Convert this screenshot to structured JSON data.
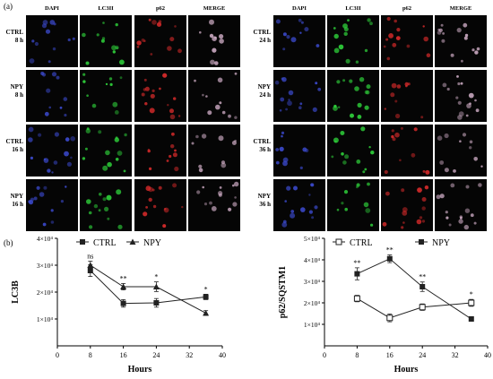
{
  "figure": {
    "panel_a_label": "(a)",
    "panel_b_label": "(b)",
    "channels": [
      "DAPI",
      "LC3II",
      "p62",
      "MERGE"
    ],
    "left_block": {
      "rows": [
        [
          "CTRL",
          "8 h"
        ],
        [
          "NPY",
          "8 h"
        ],
        [
          "CTRL",
          "16 h"
        ],
        [
          "NPY",
          "16 h"
        ]
      ]
    },
    "right_block": {
      "rows": [
        [
          "CTRL",
          "24 h"
        ],
        [
          "NPY",
          "24 h"
        ],
        [
          "CTRL",
          "36 h"
        ],
        [
          "NPY",
          "36 h"
        ]
      ]
    },
    "channel_colors": {
      "DAPI": "#3a48c8",
      "LC3II": "#2ecf3a",
      "p62": "#d42a2a",
      "MERGE": "#c9a8c0"
    }
  },
  "chart_data": [
    {
      "type": "line",
      "xlabel": "Hours",
      "ylabel": "LC3B",
      "xlim": [
        0,
        40
      ],
      "xticks": [
        0,
        8,
        16,
        24,
        32,
        40
      ],
      "ylim": [
        0,
        40000
      ],
      "yticks": [
        "1×10⁴",
        "2×10⁴",
        "3×10⁴",
        "4×10⁴"
      ],
      "legend_position": "top",
      "series": [
        {
          "name": "CTRL",
          "marker": "filled-square",
          "x": [
            8,
            16,
            24,
            36
          ],
          "y": [
            28000,
            15800,
            16000,
            18200
          ],
          "err": [
            2200,
            1400,
            1600,
            1000
          ]
        },
        {
          "name": "NPY",
          "marker": "filled-triangle",
          "x": [
            8,
            16,
            24,
            36
          ],
          "y": [
            30000,
            22000,
            22000,
            12200
          ],
          "err": [
            1500,
            1200,
            1800,
            900
          ]
        }
      ],
      "annotations": [
        {
          "x": 8,
          "text": "ns"
        },
        {
          "x": 16,
          "text": "**"
        },
        {
          "x": 24,
          "text": "*"
        },
        {
          "x": 36,
          "text": "*"
        }
      ]
    },
    {
      "type": "line",
      "xlabel": "Hours",
      "ylabel": "p62/SQSTM1",
      "xlim": [
        0,
        40
      ],
      "xticks": [
        0,
        8,
        16,
        24,
        32,
        40
      ],
      "ylim": [
        0,
        50000
      ],
      "yticks": [
        "1×10⁴",
        "2×10⁴",
        "3×10⁴",
        "4×10⁴",
        "5×10⁴"
      ],
      "legend_position": "top",
      "series": [
        {
          "name": "CTRL",
          "marker": "open-square",
          "x": [
            8,
            16,
            24,
            36
          ],
          "y": [
            22000,
            13000,
            18000,
            20000
          ],
          "err": [
            1500,
            1800,
            1500,
            1600
          ]
        },
        {
          "name": "NPY",
          "marker": "filled-square",
          "x": [
            8,
            16,
            24,
            36
          ],
          "y": [
            33500,
            40500,
            27500,
            12500
          ],
          "err": [
            2800,
            1800,
            2200,
            800
          ]
        }
      ],
      "annotations": [
        {
          "x": 8,
          "text": "**"
        },
        {
          "x": 16,
          "text": "**"
        },
        {
          "x": 24,
          "text": "**"
        },
        {
          "x": 36,
          "text": "*"
        }
      ]
    }
  ]
}
